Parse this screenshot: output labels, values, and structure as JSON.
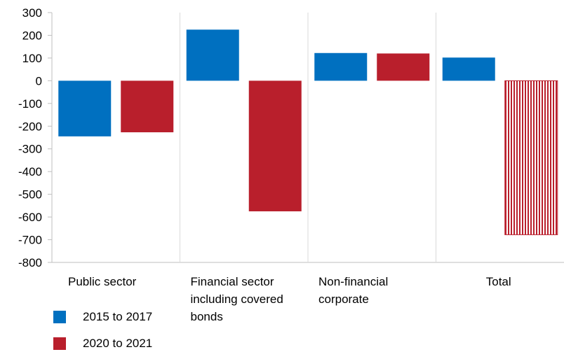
{
  "chart_data": {
    "type": "bar",
    "title": "",
    "xlabel": "",
    "ylabel": "",
    "ylim": [
      -800,
      300
    ],
    "yticks": [
      300,
      200,
      100,
      0,
      -100,
      -200,
      -300,
      -400,
      -500,
      -600,
      -700,
      -800
    ],
    "grid": "vertical separators only",
    "categories": [
      [
        "Public sector"
      ],
      [
        "Financial sector",
        "including covered",
        "bonds"
      ],
      [
        "Non-financial",
        "corporate"
      ],
      [
        "Total"
      ]
    ],
    "series": [
      {
        "name": "2015 to 2017",
        "color": "#0070c0",
        "values": [
          -245,
          225,
          122,
          102
        ]
      },
      {
        "name": "2020 to 2021",
        "color": "#b91f2c",
        "values": [
          -227,
          -575,
          120,
          -678
        ],
        "hatched_last": true
      }
    ],
    "legend_position": "bottom-left"
  }
}
